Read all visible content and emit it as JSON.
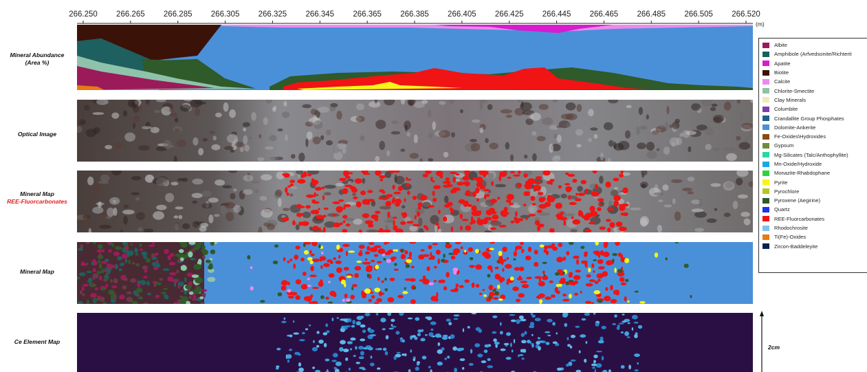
{
  "axis": {
    "ticks": [
      "266.250",
      "266.265",
      "266.285",
      "266.305",
      "266.325",
      "266.345",
      "266.365",
      "266.385",
      "266.405",
      "266.425",
      "266.445",
      "266.465",
      "266.485",
      "266.505",
      "266.520"
    ],
    "unit": "(m)"
  },
  "rows": {
    "abundance_label_1": "Mineral Abundance",
    "abundance_label_2": "(Area %)",
    "optical_label": "Optical Image",
    "ree_map_label_1": "Mineral Map",
    "ree_map_label_2": "REE-Fluorcarbonates",
    "mineral_map_label": "Mineral Map",
    "ce_map_label": "Ce Element Map"
  },
  "scale": {
    "label": "2cm"
  },
  "legend": {
    "items": [
      {
        "label": "Albite",
        "color": "#9b1b5a"
      },
      {
        "label": "Amphibole (Arfvedsonite/Richterit",
        "color": "#1e5f5f"
      },
      {
        "label": "Apatite",
        "color": "#d81ad0"
      },
      {
        "label": "Biotite",
        "color": "#3b1208"
      },
      {
        "label": "Calcite",
        "color": "#ee88ee"
      },
      {
        "label": "Chlorite-Smectite",
        "color": "#8fc2aa"
      },
      {
        "label": "Clay Minerals",
        "color": "#f3e9b7"
      },
      {
        "label": "Columbite",
        "color": "#7a3fa8"
      },
      {
        "label": "Crandallite Group Phosphates",
        "color": "#1f5f8a"
      },
      {
        "label": "Dolomite-Ankerite",
        "color": "#4a90d9"
      },
      {
        "label": "Fe-Oxides\\Hydroxides",
        "color": "#8b4a14"
      },
      {
        "label": "Gypsum",
        "color": "#6e8c3a"
      },
      {
        "label": "Mg-Silicates (Talc/Anthophyllite)",
        "color": "#27d8a0"
      },
      {
        "label": "Mn-Oxide/Hydroxide",
        "color": "#18a8e6"
      },
      {
        "label": "Monazite-Rhabdophane",
        "color": "#2fd33a"
      },
      {
        "label": "Pyrite",
        "color": "#f5f51a"
      },
      {
        "label": "Pyrochlore",
        "color": "#b5c81f"
      },
      {
        "label": "Pyroxene (Aegirine)",
        "color": "#2f5a2a"
      },
      {
        "label": "Quartz",
        "color": "#1d35e6"
      },
      {
        "label": "REE-Fluorcarbonates",
        "color": "#f01414"
      },
      {
        "label": "Rhodochrosite",
        "color": "#7fc4f0"
      },
      {
        "label": "Ti(Fe)-Oxides",
        "color": "#e77a15"
      },
      {
        "label": "Zircon-Baddeleyite",
        "color": "#0e1f52"
      }
    ]
  },
  "colors": {
    "dolomite": "#4a90d9",
    "biotite": "#3b1208",
    "amphibole": "#1e5f5f",
    "pyroxene": "#2f5a2a",
    "albite": "#9b1b5a",
    "ree": "#f01414",
    "apatite": "#d81ad0",
    "calcite": "#ee88ee",
    "pyrite": "#f5f51a",
    "chlorite": "#8fc2aa",
    "ti": "#e77a15",
    "ce_bg": "#2a0f45",
    "ce_fg": "#3fa3e0"
  }
}
